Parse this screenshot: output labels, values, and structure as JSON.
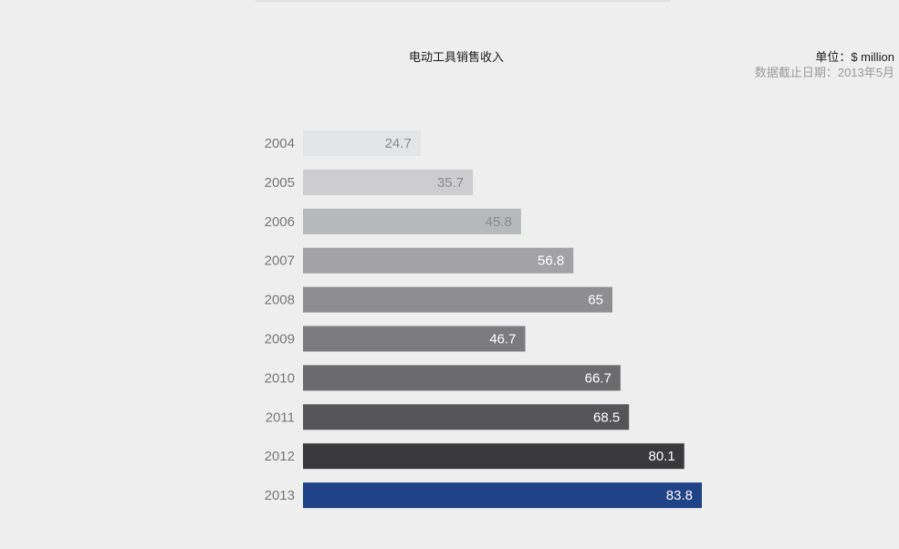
{
  "header": {
    "unit": "单位：$ million",
    "date_note": "数据截止日期：2013年5月"
  },
  "chart_data": {
    "type": "bar",
    "orientation": "horizontal",
    "title": "电动工具销售收入",
    "categories": [
      "2004",
      "2005",
      "2006",
      "2007",
      "2008",
      "2009",
      "2010",
      "2011",
      "2012",
      "2013"
    ],
    "values": [
      24.7,
      35.7,
      45.8,
      56.8,
      65,
      46.7,
      66.7,
      68.5,
      80.1,
      83.8
    ],
    "data_labels": [
      "24.7",
      "35.7",
      "45.8",
      "56.8",
      "65",
      "46.7",
      "66.7",
      "68.5",
      "80.1",
      "83.8"
    ],
    "xlim": [
      0,
      83.8
    ],
    "grid": false,
    "legend": "none",
    "colors": {
      "bars": [
        "#e3e4e6",
        "#cdcdcf",
        "#b7b8bb",
        "#a2a2a5",
        "#8e8e91",
        "#7b7b7d",
        "#6b6b6d",
        "#555557",
        "#3a3a3c",
        "#1f4386"
      ],
      "labels": [
        "#8a8a8a",
        "#8a8a8a",
        "#8a8a8a",
        "#ffffff",
        "#ffffff",
        "#ffffff",
        "#ffffff",
        "#ffffff",
        "#ffffff",
        "#ffffff"
      ],
      "category_text": "#777777"
    }
  }
}
